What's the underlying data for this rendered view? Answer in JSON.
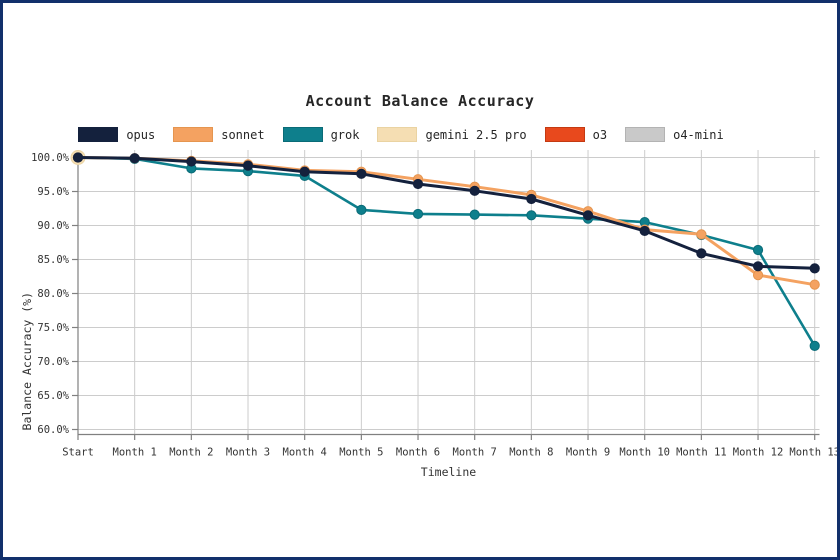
{
  "chart": {
    "title": "Account Balance Accuracy",
    "xlabel": "Timeline",
    "ylabel": "Balance Accuracy (%)"
  },
  "frame": {
    "border_color": "#12306b",
    "background": "#ffffff",
    "grid_color": "#cccccc",
    "spine_color": "#808080",
    "tick_text_color": "#333333"
  },
  "chart_data": {
    "type": "line",
    "title": "Account Balance Accuracy",
    "xlabel": "Timeline",
    "ylabel": "Balance Accuracy (%)",
    "grid": true,
    "legend_position": "top",
    "ylim": [
      60,
      100
    ],
    "yticks": [
      100,
      95,
      90,
      85,
      80,
      75,
      70,
      65,
      60
    ],
    "ytick_labels": [
      "100.0%",
      "95.0%",
      "90.0%",
      "85.0%",
      "80.0%",
      "75.0%",
      "70.0%",
      "65.0%",
      "60.0%"
    ],
    "categories": [
      "Start",
      "Month 1",
      "Month 2",
      "Month 3",
      "Month 4",
      "Month 5",
      "Month 6",
      "Month 7",
      "Month 8",
      "Month 9",
      "Month 10",
      "Month 11",
      "Month 12",
      "Month 13"
    ],
    "series": [
      {
        "name": "opus",
        "color": "#14213d",
        "edge": "#14213d",
        "values": [
          100.0,
          99.9,
          99.4,
          98.8,
          97.9,
          97.6,
          96.1,
          95.1,
          93.9,
          91.5,
          89.2,
          85.9,
          84.0,
          83.7
        ]
      },
      {
        "name": "sonnet",
        "color": "#f4a261",
        "edge": "#e5954f",
        "values": [
          100.0,
          99.9,
          99.5,
          99.0,
          98.1,
          97.9,
          96.8,
          95.7,
          94.5,
          92.1,
          89.4,
          88.7,
          82.7,
          81.3
        ]
      },
      {
        "name": "grok",
        "color": "#0e7f8c",
        "edge": "#0a6b77",
        "values": [
          100.0,
          99.8,
          98.4,
          98.0,
          97.3,
          92.3,
          91.7,
          91.6,
          91.5,
          91.0,
          90.5,
          88.6,
          86.4,
          72.3
        ]
      },
      {
        "name": "gemini 2.5 pro",
        "color": "#f5deb3",
        "edge": "#ead3a2",
        "marker_radius": 7,
        "values": [
          100.0,
          null,
          null,
          null,
          null,
          null,
          null,
          null,
          null,
          null,
          null,
          null,
          null,
          null
        ]
      },
      {
        "name": "o3",
        "color": "#e8491d",
        "edge": "#c43a12",
        "values": [
          100.0,
          null,
          null,
          null,
          null,
          null,
          null,
          null,
          null,
          null,
          null,
          null,
          null,
          null
        ]
      },
      {
        "name": "o4-mini",
        "color": "#c9c9c9",
        "edge": "#b3b3b3",
        "values": [
          100.0,
          null,
          null,
          null,
          null,
          null,
          null,
          null,
          null,
          null,
          null,
          null,
          null,
          null
        ]
      }
    ]
  }
}
